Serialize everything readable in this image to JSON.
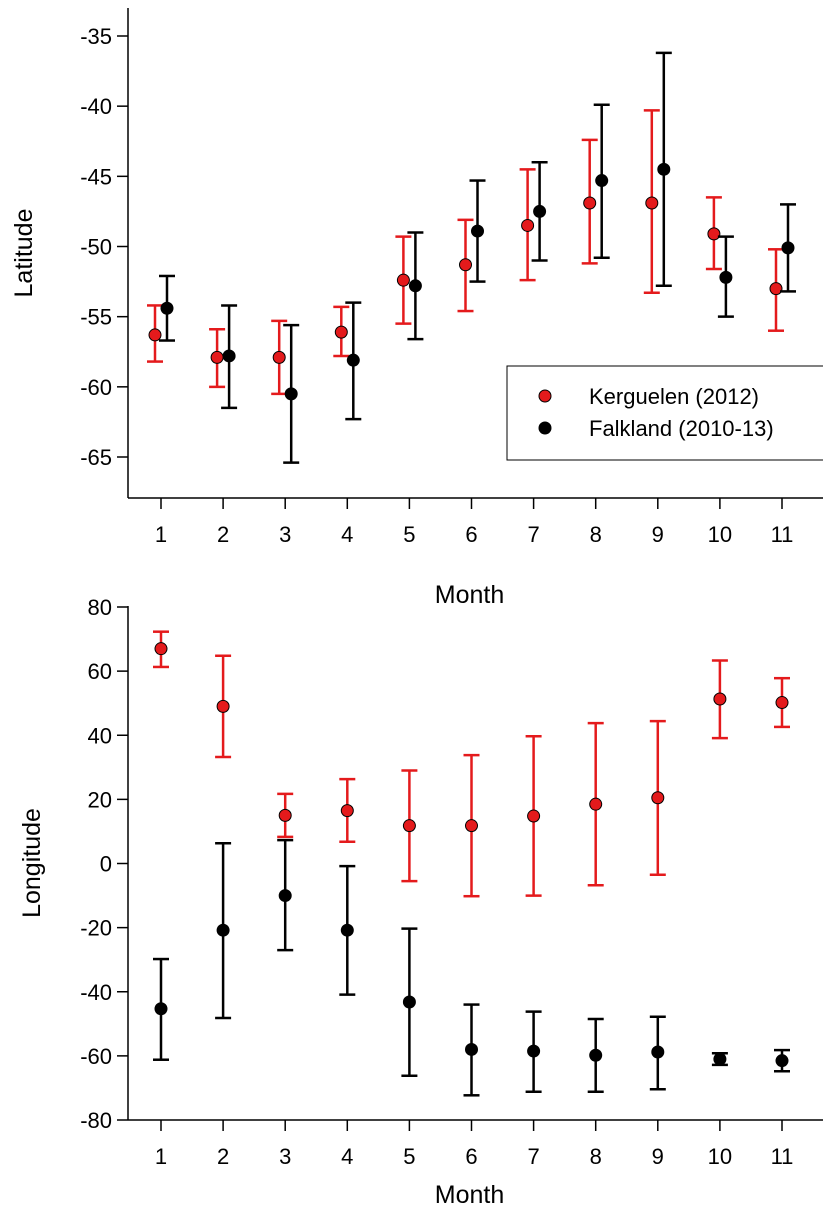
{
  "chart_data": [
    {
      "type": "scatter",
      "xlabel": "Month",
      "ylabel": "Latitude",
      "xlim": [
        1,
        11
      ],
      "ylim": [
        -68,
        -33
      ],
      "yticks": [
        -35,
        -40,
        -45,
        -50,
        -55,
        -60,
        -65
      ],
      "xticks": [
        1,
        2,
        3,
        4,
        5,
        6,
        7,
        8,
        9,
        10,
        11
      ],
      "legend": {
        "placement": "lower-right",
        "entries": [
          "Kerguelen (2012)",
          "Falkland (2010-13)"
        ]
      },
      "series": [
        {
          "name": "Kerguelen (2012)",
          "color": "#e41a1c",
          "x": [
            1,
            2,
            3,
            4,
            5,
            6,
            7,
            8,
            9,
            10,
            11
          ],
          "y": [
            -56.3,
            -57.9,
            -57.9,
            -56.1,
            -52.4,
            -51.3,
            -48.5,
            -46.9,
            -46.9,
            -49.1,
            -53.0
          ],
          "lower": [
            -58.2,
            -60.0,
            -60.5,
            -57.8,
            -55.5,
            -54.6,
            -52.4,
            -51.2,
            -53.3,
            -51.6,
            -56.0
          ],
          "upper": [
            -54.2,
            -55.9,
            -55.3,
            -54.3,
            -49.3,
            -48.1,
            -44.5,
            -42.4,
            -40.3,
            -46.5,
            -50.2
          ]
        },
        {
          "name": "Falkland (2010-13)",
          "color": "#000000",
          "x": [
            1,
            2,
            3,
            4,
            5,
            6,
            7,
            8,
            9,
            10,
            11
          ],
          "y": [
            -54.4,
            -57.8,
            -60.5,
            -58.1,
            -52.8,
            -48.9,
            -47.5,
            -45.3,
            -44.5,
            -52.2,
            -50.1
          ],
          "lower": [
            -56.7,
            -61.5,
            -65.4,
            -62.3,
            -56.6,
            -52.5,
            -51.0,
            -50.8,
            -52.8,
            -55.0,
            -53.2
          ],
          "upper": [
            -52.1,
            -54.2,
            -55.6,
            -54.0,
            -49.0,
            -45.3,
            -44.0,
            -39.9,
            -36.2,
            -49.3,
            -47.0
          ]
        }
      ]
    },
    {
      "type": "scatter",
      "xlabel": "Month",
      "ylabel": "Longitude",
      "xlim": [
        1,
        11
      ],
      "ylim": [
        -80,
        80
      ],
      "yticks": [
        80,
        60,
        40,
        20,
        0,
        -20,
        -40,
        -60,
        -80
      ],
      "xticks": [
        1,
        2,
        3,
        4,
        5,
        6,
        7,
        8,
        9,
        10,
        11
      ],
      "series": [
        {
          "name": "Kerguelen (2012)",
          "color": "#e41a1c",
          "x": [
            1,
            2,
            3,
            4,
            5,
            6,
            7,
            8,
            9,
            10,
            11
          ],
          "y": [
            67,
            49,
            15,
            16.5,
            11.8,
            11.8,
            14.8,
            18.5,
            20.5,
            51.3,
            50.2
          ],
          "lower": [
            61.3,
            33.2,
            8.3,
            6.8,
            -5.5,
            -10.2,
            -10.0,
            -6.8,
            -3.5,
            39.1,
            42.6
          ],
          "upper": [
            72.3,
            64.8,
            21.7,
            26.3,
            29.0,
            33.8,
            39.7,
            43.8,
            44.4,
            63.3,
            57.8
          ]
        },
        {
          "name": "Falkland (2010-13)",
          "color": "#000000",
          "x": [
            1,
            2,
            3,
            4,
            5,
            6,
            7,
            8,
            9,
            10,
            11
          ],
          "y": [
            -45.3,
            -20.8,
            -10.0,
            -20.8,
            -43.2,
            -58.0,
            -58.5,
            -59.8,
            -58.8,
            -61.0,
            -61.5
          ],
          "lower": [
            -61.2,
            -48.2,
            -27.0,
            -40.9,
            -66.2,
            -72.3,
            -71.2,
            -71.2,
            -70.4,
            -62.8,
            -64.8
          ],
          "upper": [
            -29.8,
            6.3,
            7.3,
            -0.8,
            -20.3,
            -44.0,
            -46.2,
            -48.5,
            -47.8,
            -59.2,
            -58.2
          ]
        }
      ]
    }
  ]
}
